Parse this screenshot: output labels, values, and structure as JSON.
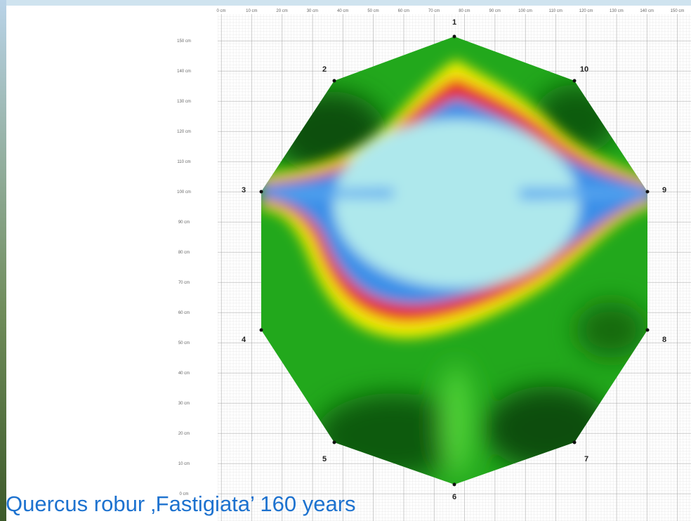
{
  "caption": "Quercus robur ‚Fastigiata’ 160 years",
  "x_axis_labels": [
    "0 cm",
    "10 cm",
    "20 cm",
    "30 cm",
    "40 cm",
    "50 cm",
    "60 cm",
    "70 cm",
    "80 cm",
    "90 cm",
    "100 cm",
    "110 cm",
    "120 cm",
    "130 cm",
    "140 cm",
    "150 cm"
  ],
  "y_axis_labels": [
    "150 cm",
    "140 cm",
    "130 cm",
    "120 cm",
    "110 cm",
    "100 cm",
    "90 cm",
    "80 cm",
    "70 cm",
    "60 cm",
    "50 cm",
    "40 cm",
    "30 cm",
    "20 cm",
    "10 cm",
    "0 cm"
  ],
  "sensors": [
    {
      "label": "1"
    },
    {
      "label": "2"
    },
    {
      "label": "3"
    },
    {
      "label": "4"
    },
    {
      "label": "5"
    },
    {
      "label": "6"
    },
    {
      "label": "7"
    },
    {
      "label": "8"
    },
    {
      "label": "9"
    },
    {
      "label": "10"
    }
  ]
}
